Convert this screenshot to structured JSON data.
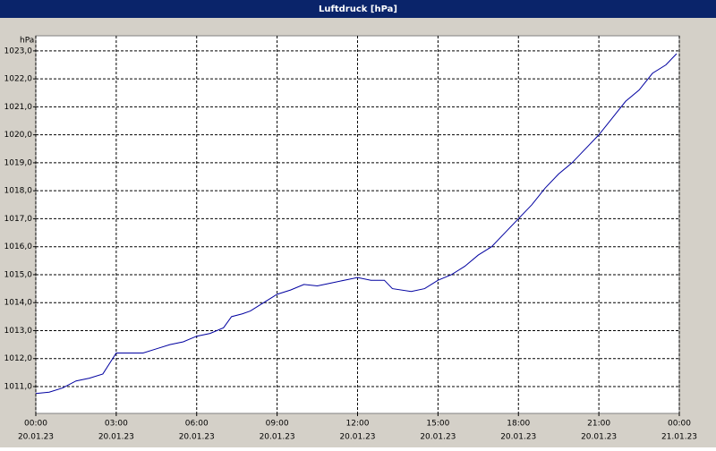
{
  "chart_data": {
    "type": "line",
    "title": "Luftdruck [hPa]",
    "y_label": "hPa",
    "x": [
      0,
      0.5,
      1,
      1.5,
      2,
      2.5,
      2.8,
      3,
      4,
      4.5,
      5,
      5.5,
      6,
      6.5,
      7,
      7.3,
      7.7,
      8,
      8.5,
      9,
      9.5,
      10,
      10.5,
      11,
      11.5,
      12,
      12.5,
      13,
      13.3,
      14,
      14.5,
      15,
      15.5,
      16,
      16.5,
      17,
      17.5,
      18,
      18.5,
      19,
      19.5,
      20,
      20.5,
      21,
      21.5,
      22,
      22.5,
      23,
      23.5,
      23.9
    ],
    "series": [
      {
        "name": "Luftdruck",
        "color": "#0000a0",
        "values": [
          1010.75,
          1010.8,
          1010.95,
          1011.2,
          1011.3,
          1011.45,
          1011.9,
          1012.2,
          1012.2,
          1012.35,
          1012.5,
          1012.6,
          1012.8,
          1012.9,
          1013.1,
          1013.5,
          1013.6,
          1013.7,
          1014.0,
          1014.3,
          1014.45,
          1014.65,
          1014.6,
          1014.7,
          1014.8,
          1014.9,
          1014.8,
          1014.8,
          1014.5,
          1014.4,
          1014.5,
          1014.8,
          1015.0,
          1015.3,
          1015.7,
          1016.0,
          1016.5,
          1017.0,
          1017.5,
          1018.1,
          1018.6,
          1019.0,
          1019.5,
          1020.0,
          1020.6,
          1021.2,
          1021.6,
          1022.2,
          1022.5,
          1022.9
        ]
      }
    ],
    "xlim": [
      0,
      24
    ],
    "ylim": [
      1010.04,
      1023.54
    ],
    "xticks": [
      {
        "value": 0,
        "label": "00:00"
      },
      {
        "value": 3,
        "label": "03:00"
      },
      {
        "value": 6,
        "label": "06:00"
      },
      {
        "value": 9,
        "label": "09:00"
      },
      {
        "value": 12,
        "label": "12:00"
      },
      {
        "value": 15,
        "label": "15:00"
      },
      {
        "value": 18,
        "label": "18:00"
      },
      {
        "value": 21,
        "label": "21:00"
      },
      {
        "value": 24,
        "label": "00:00"
      }
    ],
    "xtick_dates": [
      "20.01.23",
      "20.01.23",
      "20.01.23",
      "20.01.23",
      "20.01.23",
      "20.01.23",
      "20.01.23",
      "20.01.23",
      "21.01.23"
    ],
    "yticks": [
      {
        "value": 1011,
        "label": "1011,0"
      },
      {
        "value": 1012,
        "label": "1012,0"
      },
      {
        "value": 1013,
        "label": "1013,0"
      },
      {
        "value": 1014,
        "label": "1014,0"
      },
      {
        "value": 1015,
        "label": "1015,0"
      },
      {
        "value": 1016,
        "label": "1016,0"
      },
      {
        "value": 1017,
        "label": "1017,0"
      },
      {
        "value": 1018,
        "label": "1018,0"
      },
      {
        "value": 1019,
        "label": "1019,0"
      },
      {
        "value": 1020,
        "label": "1020,0"
      },
      {
        "value": 1021,
        "label": "1021,0"
      },
      {
        "value": 1022,
        "label": "1022,0"
      },
      {
        "value": 1023,
        "label": "1023,0"
      }
    ],
    "grid": true
  }
}
